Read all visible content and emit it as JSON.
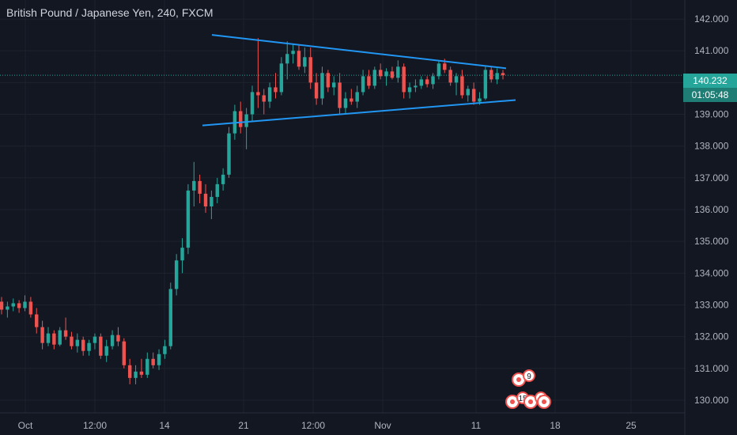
{
  "window": {
    "title": "British Pound / Japanese Yen, 240, FXCM"
  },
  "colors": {
    "background": "#131722",
    "up": "#26a69a",
    "down": "#ef5350",
    "trendline": "#2196f3",
    "grid": "#1e222d",
    "axis_text": "#b2b5be",
    "price_line": "#26a69a"
  },
  "price_tag": {
    "value": "140.232",
    "countdown": "01:05:48"
  },
  "chart_data": {
    "type": "candlestick",
    "title": "British Pound / Japanese Yen, 240, FXCM",
    "symbol": "GBPJPY",
    "interval": "240",
    "source": "FXCM",
    "ylim": [
      129.6,
      142.6
    ],
    "y_ticks": [
      130.0,
      131.0,
      132.0,
      133.0,
      134.0,
      135.0,
      136.0,
      137.0,
      138.0,
      139.0,
      140.0,
      141.0,
      142.0
    ],
    "y_tick_labels": [
      "130.000",
      "131.000",
      "132.000",
      "133.000",
      "134.000",
      "135.000",
      "136.000",
      "137.000",
      "138.000",
      "139.000",
      "140.000",
      "141.000",
      "142.000"
    ],
    "x_tick_labels": [
      "Oct",
      "12:00",
      "14",
      "21",
      "12:00",
      "Nov",
      "11",
      "18",
      "25"
    ],
    "grid": true,
    "last_price": 140.232,
    "countdown": "01:05:48",
    "candles": [
      [
        133.1,
        133.25,
        132.7,
        132.85
      ],
      [
        132.85,
        133.1,
        132.6,
        132.95
      ],
      [
        132.95,
        133.2,
        132.8,
        133.05
      ],
      [
        133.05,
        133.15,
        132.75,
        132.9
      ],
      [
        132.9,
        133.3,
        132.8,
        133.1
      ],
      [
        133.1,
        133.25,
        132.6,
        132.7
      ],
      [
        132.7,
        132.9,
        132.1,
        132.3
      ],
      [
        132.3,
        132.5,
        131.6,
        131.8
      ],
      [
        131.8,
        132.3,
        131.7,
        132.1
      ],
      [
        132.1,
        132.2,
        131.6,
        131.75
      ],
      [
        131.75,
        132.3,
        131.7,
        132.2
      ],
      [
        132.2,
        132.6,
        131.9,
        132.0
      ],
      [
        132.0,
        132.15,
        131.6,
        131.7
      ],
      [
        131.7,
        132.1,
        131.5,
        131.9
      ],
      [
        131.9,
        132.0,
        131.4,
        131.55
      ],
      [
        131.55,
        131.9,
        131.4,
        131.8
      ],
      [
        131.8,
        132.1,
        131.6,
        132.0
      ],
      [
        132.0,
        132.1,
        131.3,
        131.4
      ],
      [
        131.4,
        131.9,
        131.2,
        131.7
      ],
      [
        131.7,
        132.2,
        131.6,
        132.05
      ],
      [
        132.05,
        132.3,
        131.7,
        131.85
      ],
      [
        131.85,
        131.95,
        131.0,
        131.1
      ],
      [
        131.1,
        131.3,
        130.5,
        130.7
      ],
      [
        130.7,
        131.1,
        130.5,
        130.9
      ],
      [
        130.9,
        131.3,
        130.7,
        130.8
      ],
      [
        130.8,
        131.5,
        130.7,
        131.3
      ],
      [
        131.3,
        131.5,
        131.0,
        131.1
      ],
      [
        131.1,
        131.6,
        130.95,
        131.45
      ],
      [
        131.45,
        131.9,
        131.3,
        131.7
      ],
      [
        131.7,
        133.7,
        131.6,
        133.5
      ],
      [
        133.5,
        134.6,
        133.3,
        134.4
      ],
      [
        134.4,
        135.1,
        134.0,
        134.8
      ],
      [
        134.8,
        136.8,
        134.6,
        136.6
      ],
      [
        136.6,
        137.5,
        136.1,
        136.9
      ],
      [
        136.9,
        137.1,
        136.2,
        136.5
      ],
      [
        136.5,
        136.8,
        135.9,
        136.1
      ],
      [
        136.1,
        136.6,
        135.7,
        136.4
      ],
      [
        136.4,
        137.0,
        136.2,
        136.8
      ],
      [
        136.8,
        137.3,
        136.6,
        137.1
      ],
      [
        137.1,
        138.6,
        137.0,
        138.4
      ],
      [
        138.4,
        139.3,
        138.2,
        139.1
      ],
      [
        139.1,
        139.4,
        138.4,
        138.6
      ],
      [
        138.6,
        139.2,
        137.9,
        139.0
      ],
      [
        139.0,
        139.9,
        138.8,
        139.7
      ],
      [
        139.7,
        141.4,
        139.2,
        139.6
      ],
      [
        139.6,
        139.8,
        139.0,
        139.4
      ],
      [
        139.4,
        140.0,
        139.2,
        139.85
      ],
      [
        139.85,
        140.3,
        139.5,
        139.7
      ],
      [
        139.7,
        140.8,
        139.6,
        140.6
      ],
      [
        140.6,
        141.3,
        140.1,
        140.9
      ],
      [
        140.9,
        141.2,
        140.6,
        141.0
      ],
      [
        141.0,
        141.2,
        140.4,
        140.5
      ],
      [
        140.5,
        141.1,
        140.3,
        140.8
      ],
      [
        140.8,
        141.1,
        139.8,
        140.0
      ],
      [
        140.0,
        140.3,
        139.3,
        139.5
      ],
      [
        139.5,
        140.5,
        139.3,
        140.3
      ],
      [
        140.3,
        140.4,
        139.7,
        139.85
      ],
      [
        139.85,
        140.2,
        139.6,
        140.0
      ],
      [
        140.0,
        140.3,
        139.0,
        139.2
      ],
      [
        139.2,
        139.7,
        139.0,
        139.5
      ],
      [
        139.5,
        139.8,
        139.3,
        139.4
      ],
      [
        139.4,
        139.9,
        139.2,
        139.7
      ],
      [
        139.7,
        140.4,
        139.6,
        140.2
      ],
      [
        140.2,
        140.4,
        139.8,
        139.9
      ],
      [
        139.9,
        140.5,
        139.8,
        140.4
      ],
      [
        140.4,
        140.6,
        140.1,
        140.2
      ],
      [
        140.2,
        140.45,
        139.9,
        140.35
      ],
      [
        140.35,
        140.5,
        140.1,
        140.15
      ],
      [
        140.15,
        140.7,
        140.0,
        140.5
      ],
      [
        140.5,
        140.6,
        139.5,
        139.7
      ],
      [
        139.7,
        140.0,
        139.5,
        139.85
      ],
      [
        139.85,
        140.1,
        139.7,
        139.9
      ],
      [
        139.9,
        140.2,
        139.8,
        140.1
      ],
      [
        140.1,
        140.2,
        139.85,
        139.95
      ],
      [
        139.95,
        140.3,
        139.8,
        140.2
      ],
      [
        140.2,
        140.7,
        140.1,
        140.6
      ],
      [
        140.6,
        140.75,
        140.3,
        140.4
      ],
      [
        140.4,
        140.5,
        139.9,
        140.0
      ],
      [
        140.0,
        140.3,
        139.6,
        140.2
      ],
      [
        140.2,
        140.4,
        139.5,
        139.6
      ],
      [
        139.6,
        139.9,
        139.4,
        139.8
      ],
      [
        139.8,
        140.0,
        139.3,
        139.4
      ],
      [
        139.4,
        139.7,
        139.3,
        139.5
      ],
      [
        139.5,
        140.5,
        139.45,
        140.4
      ],
      [
        140.4,
        140.5,
        140.0,
        140.1
      ],
      [
        140.1,
        140.45,
        139.95,
        140.3
      ],
      [
        140.3,
        140.4,
        140.1,
        140.232
      ]
    ],
    "annotations": [
      {
        "type": "trendline",
        "label": "upper",
        "start": {
          "x": "Oct 18 00:00",
          "y": 141.5
        },
        "end": {
          "x": "Nov 13 04:00",
          "y": 140.45
        }
      },
      {
        "type": "trendline",
        "label": "lower",
        "start": {
          "x": "Oct 17 00:00",
          "y": 138.65
        },
        "end": {
          "x": "Nov 14 00:00",
          "y": 139.45
        }
      },
      {
        "type": "event-marker",
        "label": "9"
      },
      {
        "type": "event-marker",
        "label": "15"
      },
      {
        "type": "event-marker",
        "label": "2"
      }
    ]
  }
}
